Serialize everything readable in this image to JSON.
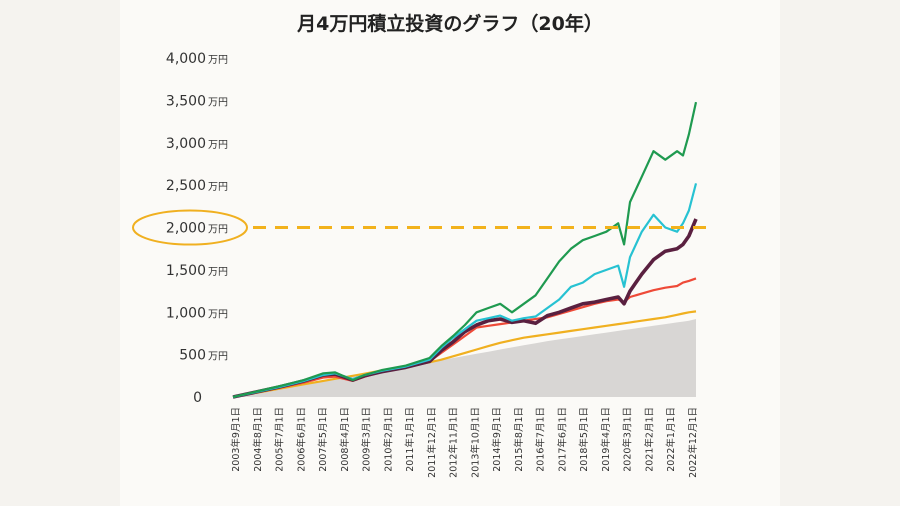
{
  "chart_data": {
    "type": "line",
    "title": "月4万円積立投資のグラフ（20年）",
    "ylim": [
      0,
      4000
    ],
    "y_unit": "万円",
    "yticks": [
      {
        "value": 0,
        "label": "0",
        "unit": ""
      },
      {
        "value": 500,
        "label": "500",
        "unit": "万円"
      },
      {
        "value": 1000,
        "label": "1,000",
        "unit": "万円"
      },
      {
        "value": 1500,
        "label": "1,500",
        "unit": "万円"
      },
      {
        "value": 2000,
        "label": "2,000",
        "unit": "万円"
      },
      {
        "value": 2500,
        "label": "2,500",
        "unit": "万円"
      },
      {
        "value": 3000,
        "label": "3,000",
        "unit": "万円"
      },
      {
        "value": 3500,
        "label": "3,500",
        "unit": "万円"
      },
      {
        "value": 4000,
        "label": "4,000",
        "unit": "万円"
      }
    ],
    "highlight_tick": "2,000",
    "reference_line": {
      "value": 2000,
      "color": "#f2b21c",
      "style": "dashed"
    },
    "x_tick_labels": [
      "2003年9月1日",
      "2004年8月1日",
      "2005年7月1日",
      "2006年6月1日",
      "2007年5月1日",
      "2008年4月1日",
      "2009年3月1日",
      "2010年2月1日",
      "2011年1月1日",
      "2011年12月1日",
      "2012年11月1日",
      "2013年10月1日",
      "2014年9月1日",
      "2015年8月1日",
      "2016年7月1日",
      "2017年6月1日",
      "2018年5月1日",
      "2019年4月1日",
      "2020年3月1日",
      "2021年2月1日",
      "2022年1月1日",
      "2022年12月1日"
    ],
    "x": [
      2003.67,
      2004.67,
      2005.67,
      2006.67,
      2007.5,
      2008.0,
      2008.75,
      2009.25,
      2010.0,
      2011.0,
      2012.0,
      2012.5,
      2013.0,
      2013.5,
      2014.0,
      2014.5,
      2015.0,
      2015.5,
      2016.0,
      2016.5,
      2017.0,
      2017.5,
      2018.0,
      2018.5,
      2019.0,
      2019.5,
      2020.0,
      2020.25,
      2020.5,
      2021.0,
      2021.5,
      2022.0,
      2022.5,
      2022.75,
      2023.0,
      2023.3
    ],
    "series": [
      {
        "color": "#d8d6d4",
        "role": "area",
        "values": [
          0,
          50,
          100,
          150,
          190,
          215,
          250,
          275,
          315,
          360,
          410,
          435,
          460,
          485,
          510,
          535,
          560,
          585,
          610,
          635,
          660,
          680,
          700,
          720,
          740,
          760,
          780,
          790,
          800,
          820,
          840,
          860,
          880,
          890,
          900,
          920
        ]
      },
      {
        "color": "#f0b020",
        "values": [
          0,
          50,
          100,
          150,
          190,
          215,
          250,
          275,
          315,
          360,
          410,
          440,
          480,
          520,
          560,
          600,
          640,
          670,
          700,
          720,
          740,
          760,
          780,
          800,
          820,
          840,
          860,
          870,
          880,
          900,
          920,
          940,
          970,
          985,
          1000,
          1010
        ]
      },
      {
        "color": "#ee4a38",
        "values": [
          0,
          55,
          110,
          170,
          230,
          240,
          190,
          240,
          300,
          350,
          420,
          520,
          620,
          720,
          820,
          840,
          860,
          880,
          900,
          920,
          940,
          980,
          1020,
          1060,
          1100,
          1130,
          1150,
          1120,
          1180,
          1220,
          1260,
          1290,
          1310,
          1350,
          1370,
          1400
        ]
      },
      {
        "color": "#5a2040",
        "values": [
          0,
          60,
          120,
          190,
          260,
          270,
          200,
          250,
          300,
          350,
          420,
          550,
          650,
          770,
          850,
          900,
          920,
          880,
          900,
          870,
          960,
          1000,
          1050,
          1100,
          1120,
          1150,
          1180,
          1100,
          1250,
          1450,
          1620,
          1720,
          1750,
          1800,
          1900,
          2100
        ]
      },
      {
        "color": "#27c2d2",
        "values": [
          0,
          60,
          120,
          190,
          260,
          280,
          210,
          260,
          310,
          360,
          440,
          580,
          700,
          800,
          900,
          930,
          960,
          900,
          930,
          950,
          1050,
          1150,
          1300,
          1350,
          1450,
          1500,
          1550,
          1300,
          1650,
          1950,
          2150,
          2000,
          1950,
          2050,
          2200,
          2520
        ]
      },
      {
        "color": "#1f9a50",
        "values": [
          0,
          65,
          130,
          200,
          280,
          290,
          200,
          260,
          320,
          370,
          460,
          600,
          720,
          850,
          1000,
          1050,
          1100,
          1000,
          1100,
          1200,
          1400,
          1600,
          1750,
          1850,
          1900,
          1950,
          2050,
          1800,
          2300,
          2600,
          2900,
          2800,
          2900,
          2850,
          3100,
          3480
        ]
      }
    ]
  }
}
